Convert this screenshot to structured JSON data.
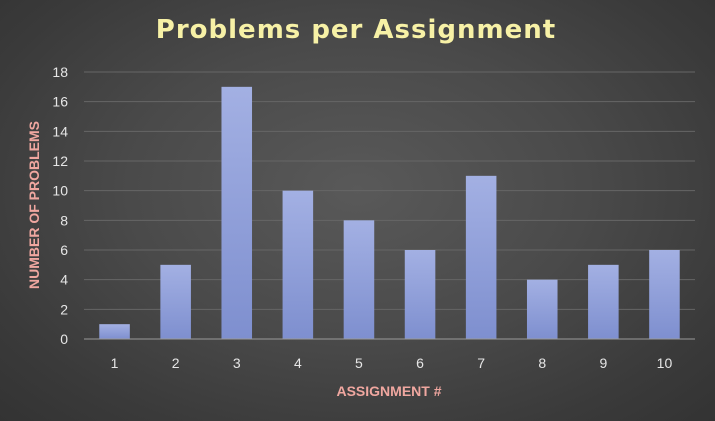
{
  "chart_data": {
    "type": "bar",
    "title": "Problems per Assignment",
    "xlabel": "ASSIGNMENT #",
    "ylabel": "NUMBER OF PROBLEMS",
    "categories": [
      "1",
      "2",
      "3",
      "4",
      "5",
      "6",
      "7",
      "8",
      "9",
      "10"
    ],
    "values": [
      1,
      5,
      17,
      10,
      8,
      6,
      11,
      4,
      5,
      6
    ],
    "ylim": [
      0,
      18
    ],
    "yticks": [
      0,
      2,
      4,
      6,
      8,
      10,
      12,
      14,
      16,
      18
    ],
    "grid": true,
    "legend": "none",
    "colors": {
      "bar_top": "#a3b0e3",
      "bar_bottom": "#7e8fcf",
      "title": "#f7f1a6",
      "axis_label": "#f0a7a0",
      "grid": "#666666",
      "axis": "#9a9a9a"
    }
  }
}
